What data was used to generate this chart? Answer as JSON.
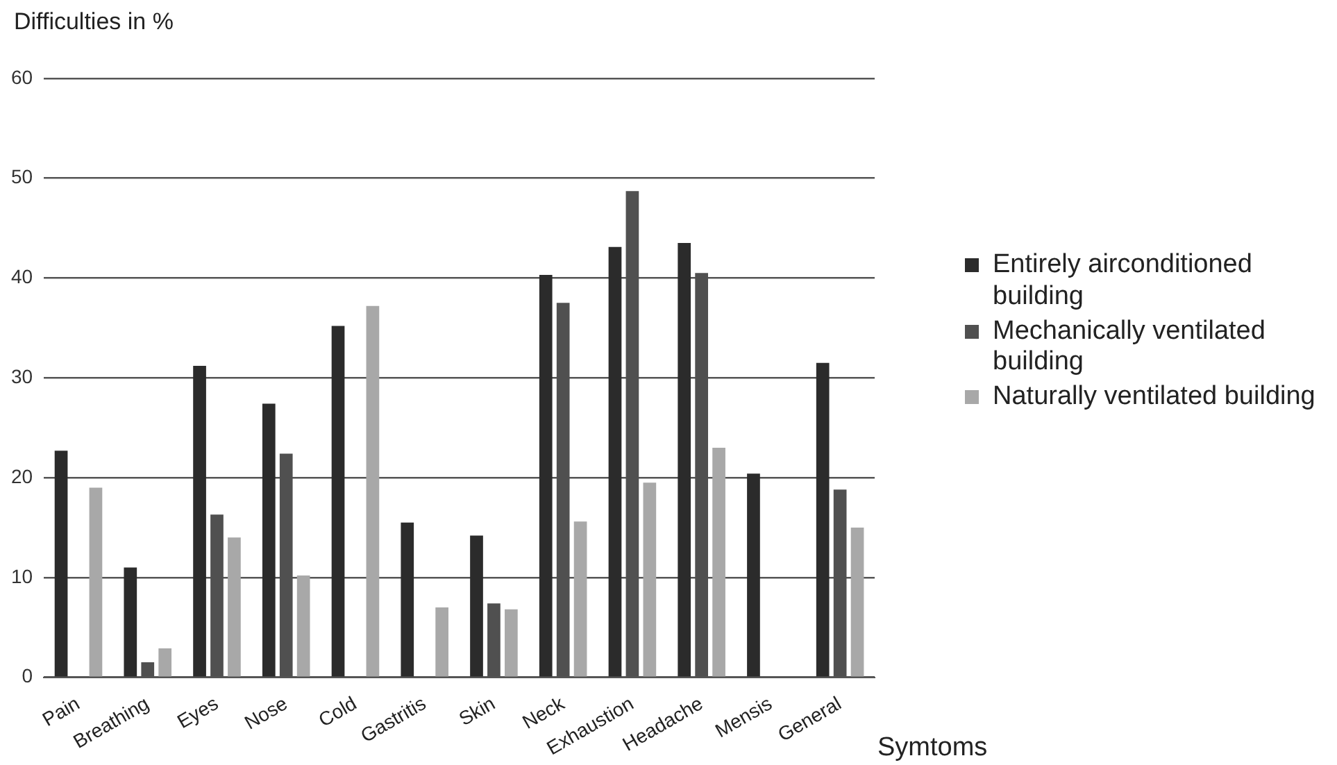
{
  "chart_data": {
    "type": "bar",
    "ylabel": "Difficulties in %",
    "xlabel": "Symtoms",
    "categories": [
      "Pain",
      "Breathing",
      "Eyes",
      "Nose",
      "Cold",
      "Gastritis",
      "Skin",
      "Neck",
      "Exhaustion",
      "Headache",
      "Mensis",
      "General"
    ],
    "series": [
      {
        "name": "Entirely airconditioned building",
        "color": "#2b2b2b",
        "values": [
          22.7,
          11.0,
          31.2,
          27.4,
          35.2,
          15.5,
          14.2,
          40.3,
          43.1,
          43.5,
          20.4,
          31.5
        ]
      },
      {
        "name": "Mechanically ventilated building",
        "color": "#505050",
        "values": [
          null,
          1.5,
          16.3,
          22.4,
          null,
          null,
          7.4,
          37.5,
          48.7,
          40.5,
          null,
          18.8
        ]
      },
      {
        "name": "Naturally ventilated building",
        "color": "#a8a8a8",
        "values": [
          19.0,
          2.9,
          14.0,
          10.2,
          37.2,
          7.0,
          6.8,
          15.6,
          19.5,
          23.0,
          null,
          15.0
        ]
      }
    ],
    "ylim": [
      0,
      60
    ],
    "yticks": [
      0,
      10,
      20,
      30,
      40,
      50,
      60
    ],
    "grid": "y",
    "legend": "right"
  }
}
